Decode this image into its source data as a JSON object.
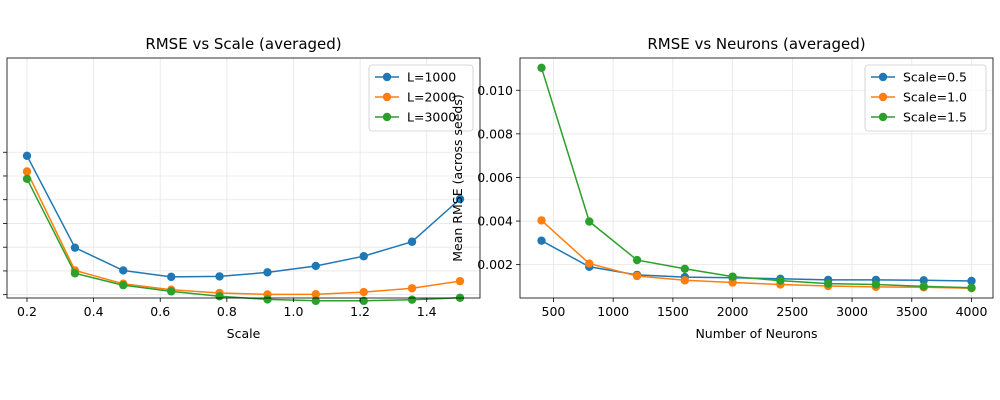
{
  "chart_data": [
    {
      "type": "line",
      "title": "RMSE vs Scale (averaged)",
      "xlabel": "Scale",
      "ylabel": "",
      "xlim": [
        0.14,
        1.56
      ],
      "ylim": [
        0.00086,
        0.01097
      ],
      "xticks": [
        0.2,
        0.4,
        0.6,
        0.8,
        1.0,
        1.2,
        1.4
      ],
      "xtick_labels": [
        "0.2",
        "0.4",
        "0.6",
        "0.8",
        "1.0",
        "1.2",
        "1.4"
      ],
      "yticks": [
        0.001,
        0.002,
        0.003,
        0.004,
        0.005,
        0.006,
        0.007
      ],
      "ytick_labels": [
        "",
        "",
        "",
        "",
        "",
        "",
        ""
      ],
      "grid": true,
      "legend_position": "top-right",
      "x": [
        0.2,
        0.344,
        0.489,
        0.633,
        0.778,
        0.922,
        1.067,
        1.211,
        1.356,
        1.5
      ],
      "series": [
        {
          "name": "L=1000",
          "color": "#1f77b4",
          "values": [
            0.00685,
            0.00298,
            0.00202,
            0.00175,
            0.00177,
            0.00194,
            0.00221,
            0.00262,
            0.00323,
            0.00503
          ]
        },
        {
          "name": "L=2000",
          "color": "#ff7f0e",
          "values": [
            0.00619,
            0.00202,
            0.00146,
            0.00121,
            0.00107,
            0.00101,
            0.00102,
            0.00111,
            0.00127,
            0.00157
          ]
        },
        {
          "name": "L=3000",
          "color": "#2ca02c",
          "values": [
            0.00588,
            0.0019,
            0.0014,
            0.00114,
            0.00093,
            0.0008,
            0.00074,
            0.00074,
            0.00079,
            0.00087
          ]
        }
      ]
    },
    {
      "type": "line",
      "title": "RMSE vs Neurons (averaged)",
      "xlabel": "Number of Neurons",
      "ylabel": "Mean RMSE (across seeds)",
      "xlim": [
        220,
        4180
      ],
      "ylim": [
        0.00047,
        0.01148
      ],
      "xticks": [
        500,
        1000,
        1500,
        2000,
        2500,
        3000,
        3500,
        4000
      ],
      "xtick_labels": [
        "500",
        "1000",
        "1500",
        "2000",
        "2500",
        "3000",
        "3500",
        "4000"
      ],
      "yticks": [
        0.002,
        0.004,
        0.006,
        0.008,
        0.01
      ],
      "ytick_labels": [
        "0.002",
        "0.004",
        "0.006",
        "0.008",
        "0.010"
      ],
      "grid": true,
      "legend_position": "top-right",
      "x": [
        400,
        800,
        1200,
        1600,
        2000,
        2400,
        2800,
        3200,
        3600,
        4000
      ],
      "series": [
        {
          "name": "Scale=0.5",
          "color": "#1f77b4",
          "values": [
            0.0031,
            0.0019,
            0.00153,
            0.00143,
            0.0014,
            0.00135,
            0.0013,
            0.0013,
            0.00128,
            0.00125
          ]
        },
        {
          "name": "Scale=1.0",
          "color": "#ff7f0e",
          "values": [
            0.00403,
            0.00205,
            0.00148,
            0.00128,
            0.00118,
            0.00109,
            0.00102,
            0.00098,
            0.00096,
            0.00092
          ]
        },
        {
          "name": "Scale=1.5",
          "color": "#2ca02c",
          "values": [
            0.01103,
            0.00398,
            0.00221,
            0.00181,
            0.00145,
            0.00127,
            0.00113,
            0.00109,
            0.001,
            0.00094
          ]
        }
      ]
    }
  ]
}
